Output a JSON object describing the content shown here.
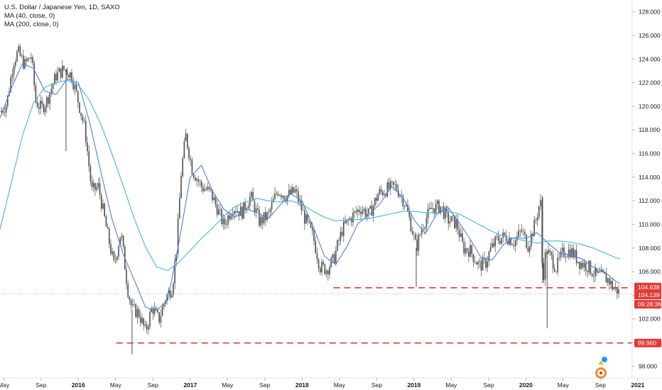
{
  "legend": {
    "symbol": "U.S. Dollar / Japanese Yen, 1D, SAXO",
    "ma40": "MA (40, close, 0)",
    "ma200": "MA (200, close, 0)"
  },
  "colors": {
    "candle": "#4d4d4d",
    "ma40": "#4f7fe0",
    "ma200": "#45b5d6",
    "level": "#e53935",
    "last_price_line": "#9e9e9e",
    "price_tag": "#e53935"
  },
  "chart_data": {
    "type": "line",
    "title": "U.S. Dollar / Japanese Yen, 1D, SAXO",
    "ylim": [
      97,
      129
    ],
    "y_ticks": [
      98,
      100,
      102,
      104,
      106,
      108,
      110,
      112,
      114,
      116,
      118,
      120,
      122,
      124,
      126,
      128
    ],
    "y_tick_labels": [
      "98.000",
      "100.000",
      "102.000",
      "104.000",
      "106.000",
      "108.000",
      "110.000",
      "112.000",
      "114.000",
      "116.000",
      "118.000",
      "120.000",
      "122.000",
      "124.000",
      "126.000",
      "128.000"
    ],
    "xlim": [
      2015.3,
      2020.95
    ],
    "x_ticks": [
      2015.333,
      2015.667,
      2016.0,
      2016.333,
      2016.667,
      2017.0,
      2017.333,
      2017.667,
      2018.0,
      2018.333,
      2018.667,
      2019.0,
      2019.333,
      2019.667,
      2020.0,
      2020.333,
      2020.667,
      2021.0
    ],
    "x_tick_labels": [
      "May",
      "Sep",
      "2016",
      "May",
      "Sep",
      "2017",
      "May",
      "Sep",
      "2018",
      "May",
      "Sep",
      "2019",
      "May",
      "Sep",
      "2020",
      "May",
      "Sep",
      "2021"
    ],
    "series": [
      {
        "name": "USDJPY",
        "kind": "price",
        "x": [
          2015.3,
          2015.36,
          2015.42,
          2015.46,
          2015.52,
          2015.58,
          2015.62,
          2015.67,
          2015.72,
          2015.8,
          2015.88,
          2015.94,
          2016.0,
          2016.06,
          2016.12,
          2016.18,
          2016.26,
          2016.32,
          2016.38,
          2016.44,
          2016.48,
          2016.54,
          2016.6,
          2016.66,
          2016.72,
          2016.78,
          2016.84,
          2016.88,
          2016.92,
          2016.96,
          2017.02,
          2017.1,
          2017.18,
          2017.24,
          2017.3,
          2017.38,
          2017.46,
          2017.54,
          2017.62,
          2017.7,
          2017.78,
          2017.86,
          2017.94,
          2018.02,
          2018.1,
          2018.16,
          2018.22,
          2018.28,
          2018.36,
          2018.44,
          2018.52,
          2018.6,
          2018.68,
          2018.76,
          2018.84,
          2018.92,
          2018.98,
          2019.02,
          2019.08,
          2019.16,
          2019.24,
          2019.3,
          2019.38,
          2019.44,
          2019.5,
          2019.58,
          2019.64,
          2019.68,
          2019.74,
          2019.82,
          2019.9,
          2019.96,
          2020.02,
          2020.08,
          2020.13,
          2020.15,
          2020.18,
          2020.2,
          2020.23,
          2020.27,
          2020.33,
          2020.4,
          2020.48,
          2020.56,
          2020.62,
          2020.68,
          2020.74,
          2020.78,
          2020.82,
          2020.84
        ],
        "y": [
          119.5,
          120.2,
          123.8,
          124.6,
          123.5,
          124.3,
          120.4,
          119.8,
          120.5,
          122.6,
          123.2,
          122.6,
          120.4,
          118.0,
          112.8,
          113.2,
          109.2,
          106.5,
          109.4,
          104.6,
          102.8,
          102.5,
          100.9,
          103.0,
          101.9,
          103.8,
          104.7,
          108.2,
          114.5,
          117.5,
          114.6,
          113.2,
          112.7,
          111.4,
          109.9,
          111.5,
          111.0,
          112.4,
          110.2,
          110.8,
          112.9,
          112.4,
          112.8,
          110.6,
          108.9,
          106.4,
          106.2,
          107.0,
          109.6,
          110.6,
          111.4,
          110.8,
          112.6,
          113.0,
          113.2,
          111.8,
          109.7,
          108.0,
          110.0,
          111.4,
          111.5,
          110.4,
          110.1,
          108.0,
          107.8,
          106.5,
          106.7,
          107.8,
          108.7,
          109.0,
          108.5,
          109.5,
          108.2,
          110.0,
          112.1,
          105.0,
          108.0,
          107.5,
          107.1,
          106.3,
          107.6,
          107.8,
          106.8,
          106.4,
          105.7,
          105.6,
          105.3,
          104.6,
          104.4,
          104.14
        ]
      },
      {
        "name": "MA (40, close, 0)",
        "kind": "ma40",
        "x": [
          2015.3,
          2015.4,
          2015.5,
          2015.6,
          2015.7,
          2015.8,
          2015.9,
          2016.0,
          2016.1,
          2016.2,
          2016.3,
          2016.4,
          2016.5,
          2016.6,
          2016.7,
          2016.8,
          2016.9,
          2017.0,
          2017.1,
          2017.2,
          2017.3,
          2017.4,
          2017.5,
          2017.6,
          2017.7,
          2017.8,
          2017.9,
          2018.0,
          2018.1,
          2018.2,
          2018.3,
          2018.4,
          2018.5,
          2018.6,
          2018.7,
          2018.8,
          2018.9,
          2019.0,
          2019.1,
          2019.2,
          2019.3,
          2019.4,
          2019.5,
          2019.6,
          2019.7,
          2019.8,
          2019.9,
          2020.0,
          2020.1,
          2020.2,
          2020.3,
          2020.4,
          2020.5,
          2020.6,
          2020.7,
          2020.8,
          2020.84
        ],
        "y": [
          119.0,
          121.5,
          123.6,
          123.2,
          121.3,
          121.0,
          122.3,
          122.0,
          118.7,
          114.5,
          110.5,
          107.5,
          105.3,
          103.0,
          102.7,
          103.6,
          108.5,
          114.0,
          115.0,
          112.8,
          111.3,
          110.6,
          111.3,
          111.0,
          110.5,
          111.6,
          112.6,
          112.0,
          109.8,
          107.3,
          106.6,
          108.1,
          110.1,
          110.8,
          111.8,
          113.2,
          112.3,
          110.4,
          109.2,
          110.8,
          111.5,
          110.2,
          108.8,
          107.2,
          107.0,
          108.3,
          108.9,
          108.8,
          109.3,
          108.4,
          107.6,
          107.4,
          107.1,
          106.4,
          106.0,
          105.2,
          105.0
        ]
      },
      {
        "name": "MA (200, close, 0)",
        "kind": "ma200",
        "x": [
          2015.3,
          2015.4,
          2015.5,
          2015.6,
          2015.7,
          2015.8,
          2015.9,
          2016.0,
          2016.1,
          2016.2,
          2016.3,
          2016.4,
          2016.5,
          2016.6,
          2016.7,
          2016.8,
          2016.9,
          2017.0,
          2017.1,
          2017.2,
          2017.3,
          2017.4,
          2017.5,
          2017.6,
          2017.7,
          2017.8,
          2017.9,
          2018.0,
          2018.1,
          2018.2,
          2018.3,
          2018.4,
          2018.5,
          2018.6,
          2018.7,
          2018.8,
          2018.9,
          2019.0,
          2019.1,
          2019.2,
          2019.3,
          2019.4,
          2019.5,
          2019.6,
          2019.7,
          2019.8,
          2019.9,
          2020.0,
          2020.1,
          2020.2,
          2020.3,
          2020.4,
          2020.5,
          2020.6,
          2020.7,
          2020.8,
          2020.84
        ],
        "y": [
          109.6,
          113.5,
          117.5,
          120.3,
          121.6,
          122.0,
          122.2,
          121.8,
          120.5,
          118.5,
          116.0,
          113.3,
          110.5,
          108.1,
          106.4,
          106.1,
          106.8,
          107.8,
          108.8,
          109.7,
          110.7,
          111.5,
          111.9,
          112.2,
          112.0,
          111.9,
          112.0,
          111.7,
          111.1,
          110.6,
          110.3,
          110.4,
          110.4,
          110.5,
          110.7,
          110.9,
          111.1,
          111.1,
          111.0,
          111.0,
          111.1,
          110.9,
          110.4,
          109.9,
          109.4,
          109.0,
          108.8,
          108.6,
          108.4,
          108.6,
          108.6,
          108.5,
          108.3,
          108.0,
          107.6,
          107.2,
          107.1
        ]
      }
    ],
    "levels": [
      {
        "name": "support-104.638",
        "value": 104.638,
        "x_start": 2018.28,
        "label": "104.638"
      },
      {
        "name": "support-99.960",
        "value": 99.96,
        "x_start": 2016.34,
        "label": "99.960"
      }
    ],
    "last_price": {
      "value": 104.139,
      "label": "104.139",
      "countdown": "09:28:36"
    },
    "notable_wicks": [
      {
        "x": 2015.89,
        "low": 116.2
      },
      {
        "x": 2016.48,
        "low": 99.0
      },
      {
        "x": 2019.02,
        "low": 104.7
      },
      {
        "x": 2020.19,
        "low": 101.2
      },
      {
        "x": 2020.15,
        "high": 112.3
      }
    ]
  }
}
